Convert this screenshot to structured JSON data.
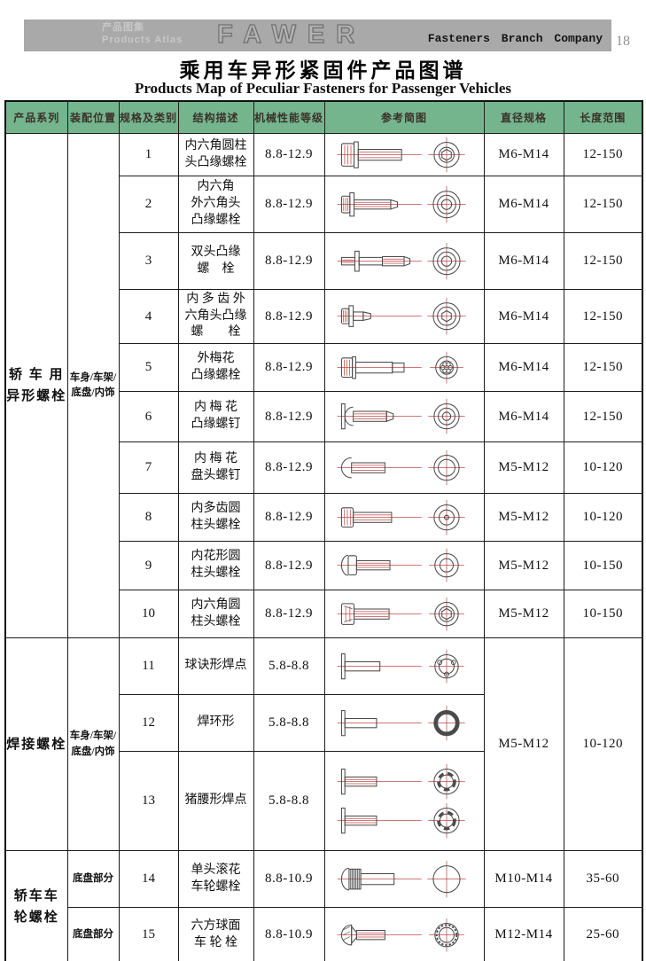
{
  "header_bar": {
    "atlas_cn": "产品图集",
    "atlas_en": "Products Atlas",
    "logo": "FAWER",
    "company": "Fasteners Branch Company",
    "page_number": "18"
  },
  "title": {
    "cn": "乘用车异形紧固件产品图谱",
    "en": "Products Map of Peculiar Fasteners for Passenger Vehicles"
  },
  "colors": {
    "table_header_bg": "#74b58e",
    "top_bar_bg": "#a9a9a9",
    "sketch_line": "#4a4a4a",
    "sketch_accent_red": "#c04848",
    "border": "#1c1c1c"
  },
  "table": {
    "columns": [
      "产品系列",
      "装配位置",
      "规格及类别",
      "结构描述",
      "机械性能等级",
      "参考简图",
      "直径规格",
      "长度范围"
    ],
    "series": [
      {
        "name": "轿 车 用\n异形螺栓",
        "position": "车身/车架/\n底盘/内饰"
      },
      {
        "name": "焊接螺栓",
        "position": "车身/车架/\n底盘/内饰"
      },
      {
        "name": "轿车车\n轮螺栓",
        "positions": [
          "底盘部分",
          "底盘部分"
        ]
      }
    ],
    "rows": [
      {
        "no": "1",
        "desc": "内六角圆柱\n头凸缘螺栓",
        "grade": "8.8-12.9",
        "dia": "M6-M14",
        "len": "12-150",
        "sketch": "socket-cylinder-head-flange-bolt"
      },
      {
        "no": "2",
        "desc": "内六角\n外六角头\n凸缘螺栓",
        "grade": "8.8-12.9",
        "dia": "M6-M14",
        "len": "12-150",
        "sketch": "socket-hex-head-flange-bolt"
      },
      {
        "no": "3",
        "desc": "双头凸缘\n螺　栓",
        "grade": "8.8-12.9",
        "dia": "M6-M14",
        "len": "12-150",
        "sketch": "double-end-flange-stud"
      },
      {
        "no": "4",
        "desc": "内 多 齿 外\n六角头凸缘\n螺　　栓",
        "grade": "8.8-12.9",
        "dia": "M6-M14",
        "len": "12-150",
        "sketch": "multi-tooth-hex-flange-bolt"
      },
      {
        "no": "5",
        "desc": "外梅花\n凸缘螺栓",
        "grade": "8.8-12.9",
        "dia": "M6-M14",
        "len": "12-150",
        "sketch": "external-torx-flange-bolt"
      },
      {
        "no": "6",
        "desc": "内 梅 花\n凸缘螺钉",
        "grade": "8.8-12.9",
        "dia": "M6-M14",
        "len": "12-150",
        "sketch": "internal-torx-flange-screw"
      },
      {
        "no": "7",
        "desc": "内 梅 花\n盘头螺钉",
        "grade": "8.8-12.9",
        "dia": "M5-M12",
        "len": "10-120",
        "sketch": "internal-torx-pan-head-screw"
      },
      {
        "no": "8",
        "desc": "内多齿圆\n柱头螺栓",
        "grade": "8.8-12.9",
        "dia": "M5-M12",
        "len": "10-120",
        "sketch": "multi-tooth-cylinder-head-bolt"
      },
      {
        "no": "9",
        "desc": "内花形圆\n柱头螺栓",
        "grade": "8.8-12.9",
        "dia": "M5-M12",
        "len": "10-150",
        "sketch": "spline-cylinder-head-bolt"
      },
      {
        "no": "10",
        "desc": "内六角圆\n柱头螺栓",
        "grade": "8.8-12.9",
        "dia": "M5-M12",
        "len": "10-150",
        "sketch": "hex-socket-cylinder-head-bolt"
      },
      {
        "no": "11",
        "desc": "球诀形焊点",
        "grade": "5.8-8.8",
        "dia": "M5-M12",
        "len": "10-120",
        "sketch": "spherical-weld-bolt"
      },
      {
        "no": "12",
        "desc": "焊环形",
        "grade": "5.8-8.8",
        "dia": "M5-M12",
        "len": "10-120",
        "sketch": "ring-weld-bolt"
      },
      {
        "no": "13",
        "desc": "猪腰形焊点",
        "grade": "5.8-8.8",
        "dia": "M5-M12",
        "len": "10-120",
        "sketch": "kidney-weld-bolt"
      },
      {
        "no": "14",
        "desc": "单头滚花\n车轮螺栓",
        "grade": "8.8-10.9",
        "dia": "M10-M14",
        "len": "35-60",
        "sketch": "knurled-wheel-bolt"
      },
      {
        "no": "15",
        "desc": "六方球面\n车 轮 栓",
        "grade": "8.8-10.9",
        "dia": "M12-M14",
        "len": "25-60",
        "sketch": "hex-ball-face-wheel-bolt"
      }
    ]
  }
}
